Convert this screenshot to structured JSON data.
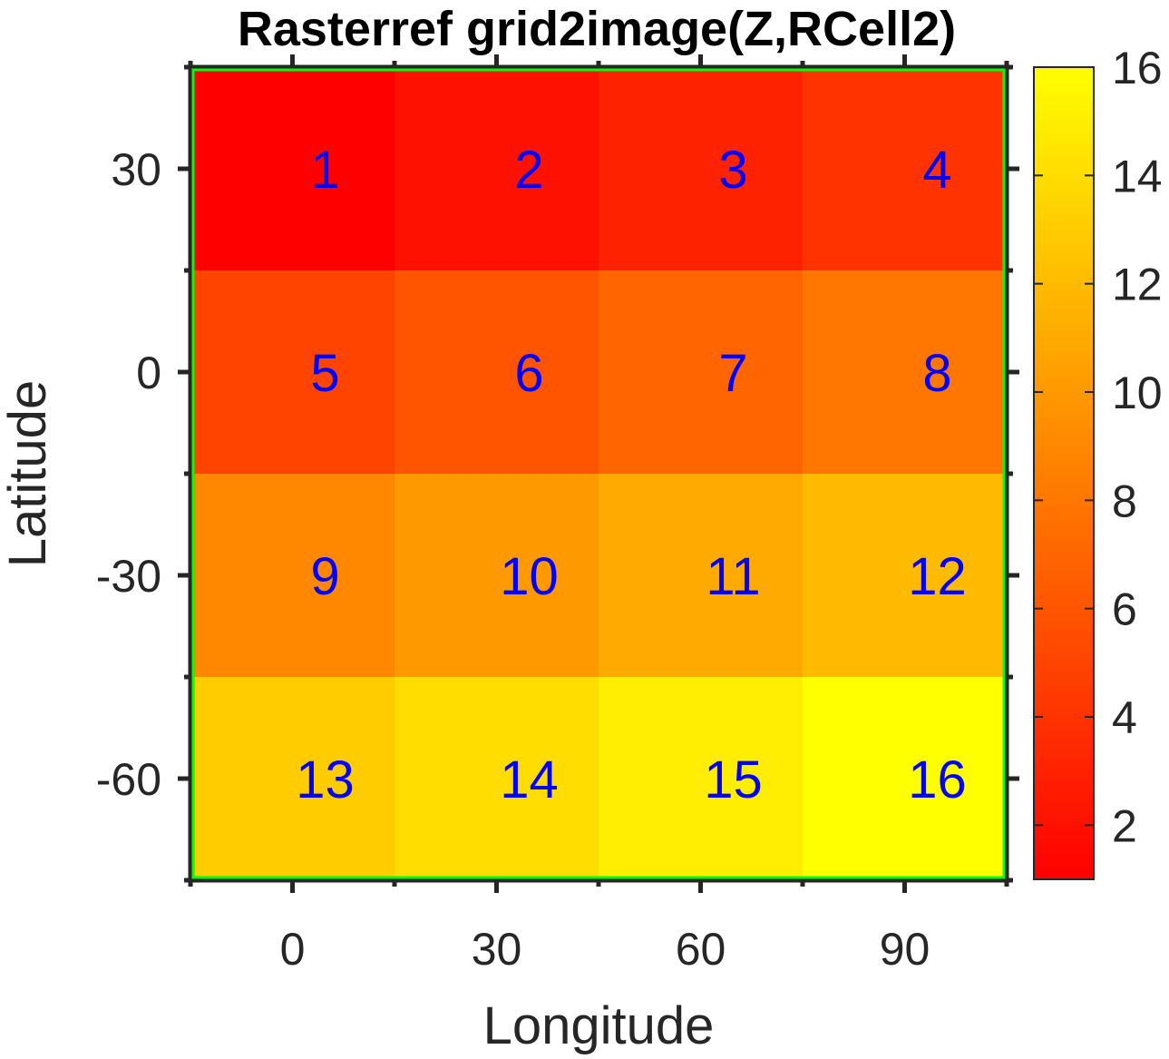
{
  "chart_data": {
    "type": "heatmap",
    "title": "Rasterref grid2image(Z,RCell2)",
    "xlabel": "Longitude",
    "ylabel": "Latitude",
    "x_ticks": [
      "0",
      "30",
      "60",
      "90"
    ],
    "y_ticks": [
      "30",
      "0",
      "-30",
      "-60"
    ],
    "x": [
      0,
      30,
      60,
      90
    ],
    "y": [
      30,
      0,
      -30,
      -60
    ],
    "xlim": [
      -15,
      105
    ],
    "ylim": [
      -75,
      45
    ],
    "values": [
      [
        1,
        2,
        3,
        4
      ],
      [
        5,
        6,
        7,
        8
      ],
      [
        9,
        10,
        11,
        12
      ],
      [
        13,
        14,
        15,
        16
      ]
    ],
    "colorbar": {
      "colormap": "autumn",
      "range": [
        1,
        16
      ],
      "ticks": [
        "2",
        "4",
        "6",
        "8",
        "10",
        "12",
        "14",
        "16"
      ],
      "tick_values": [
        2,
        4,
        6,
        8,
        10,
        12,
        14,
        16
      ]
    },
    "frame_color": "#00ff00",
    "label_color": "#0000ff",
    "grid": false
  }
}
